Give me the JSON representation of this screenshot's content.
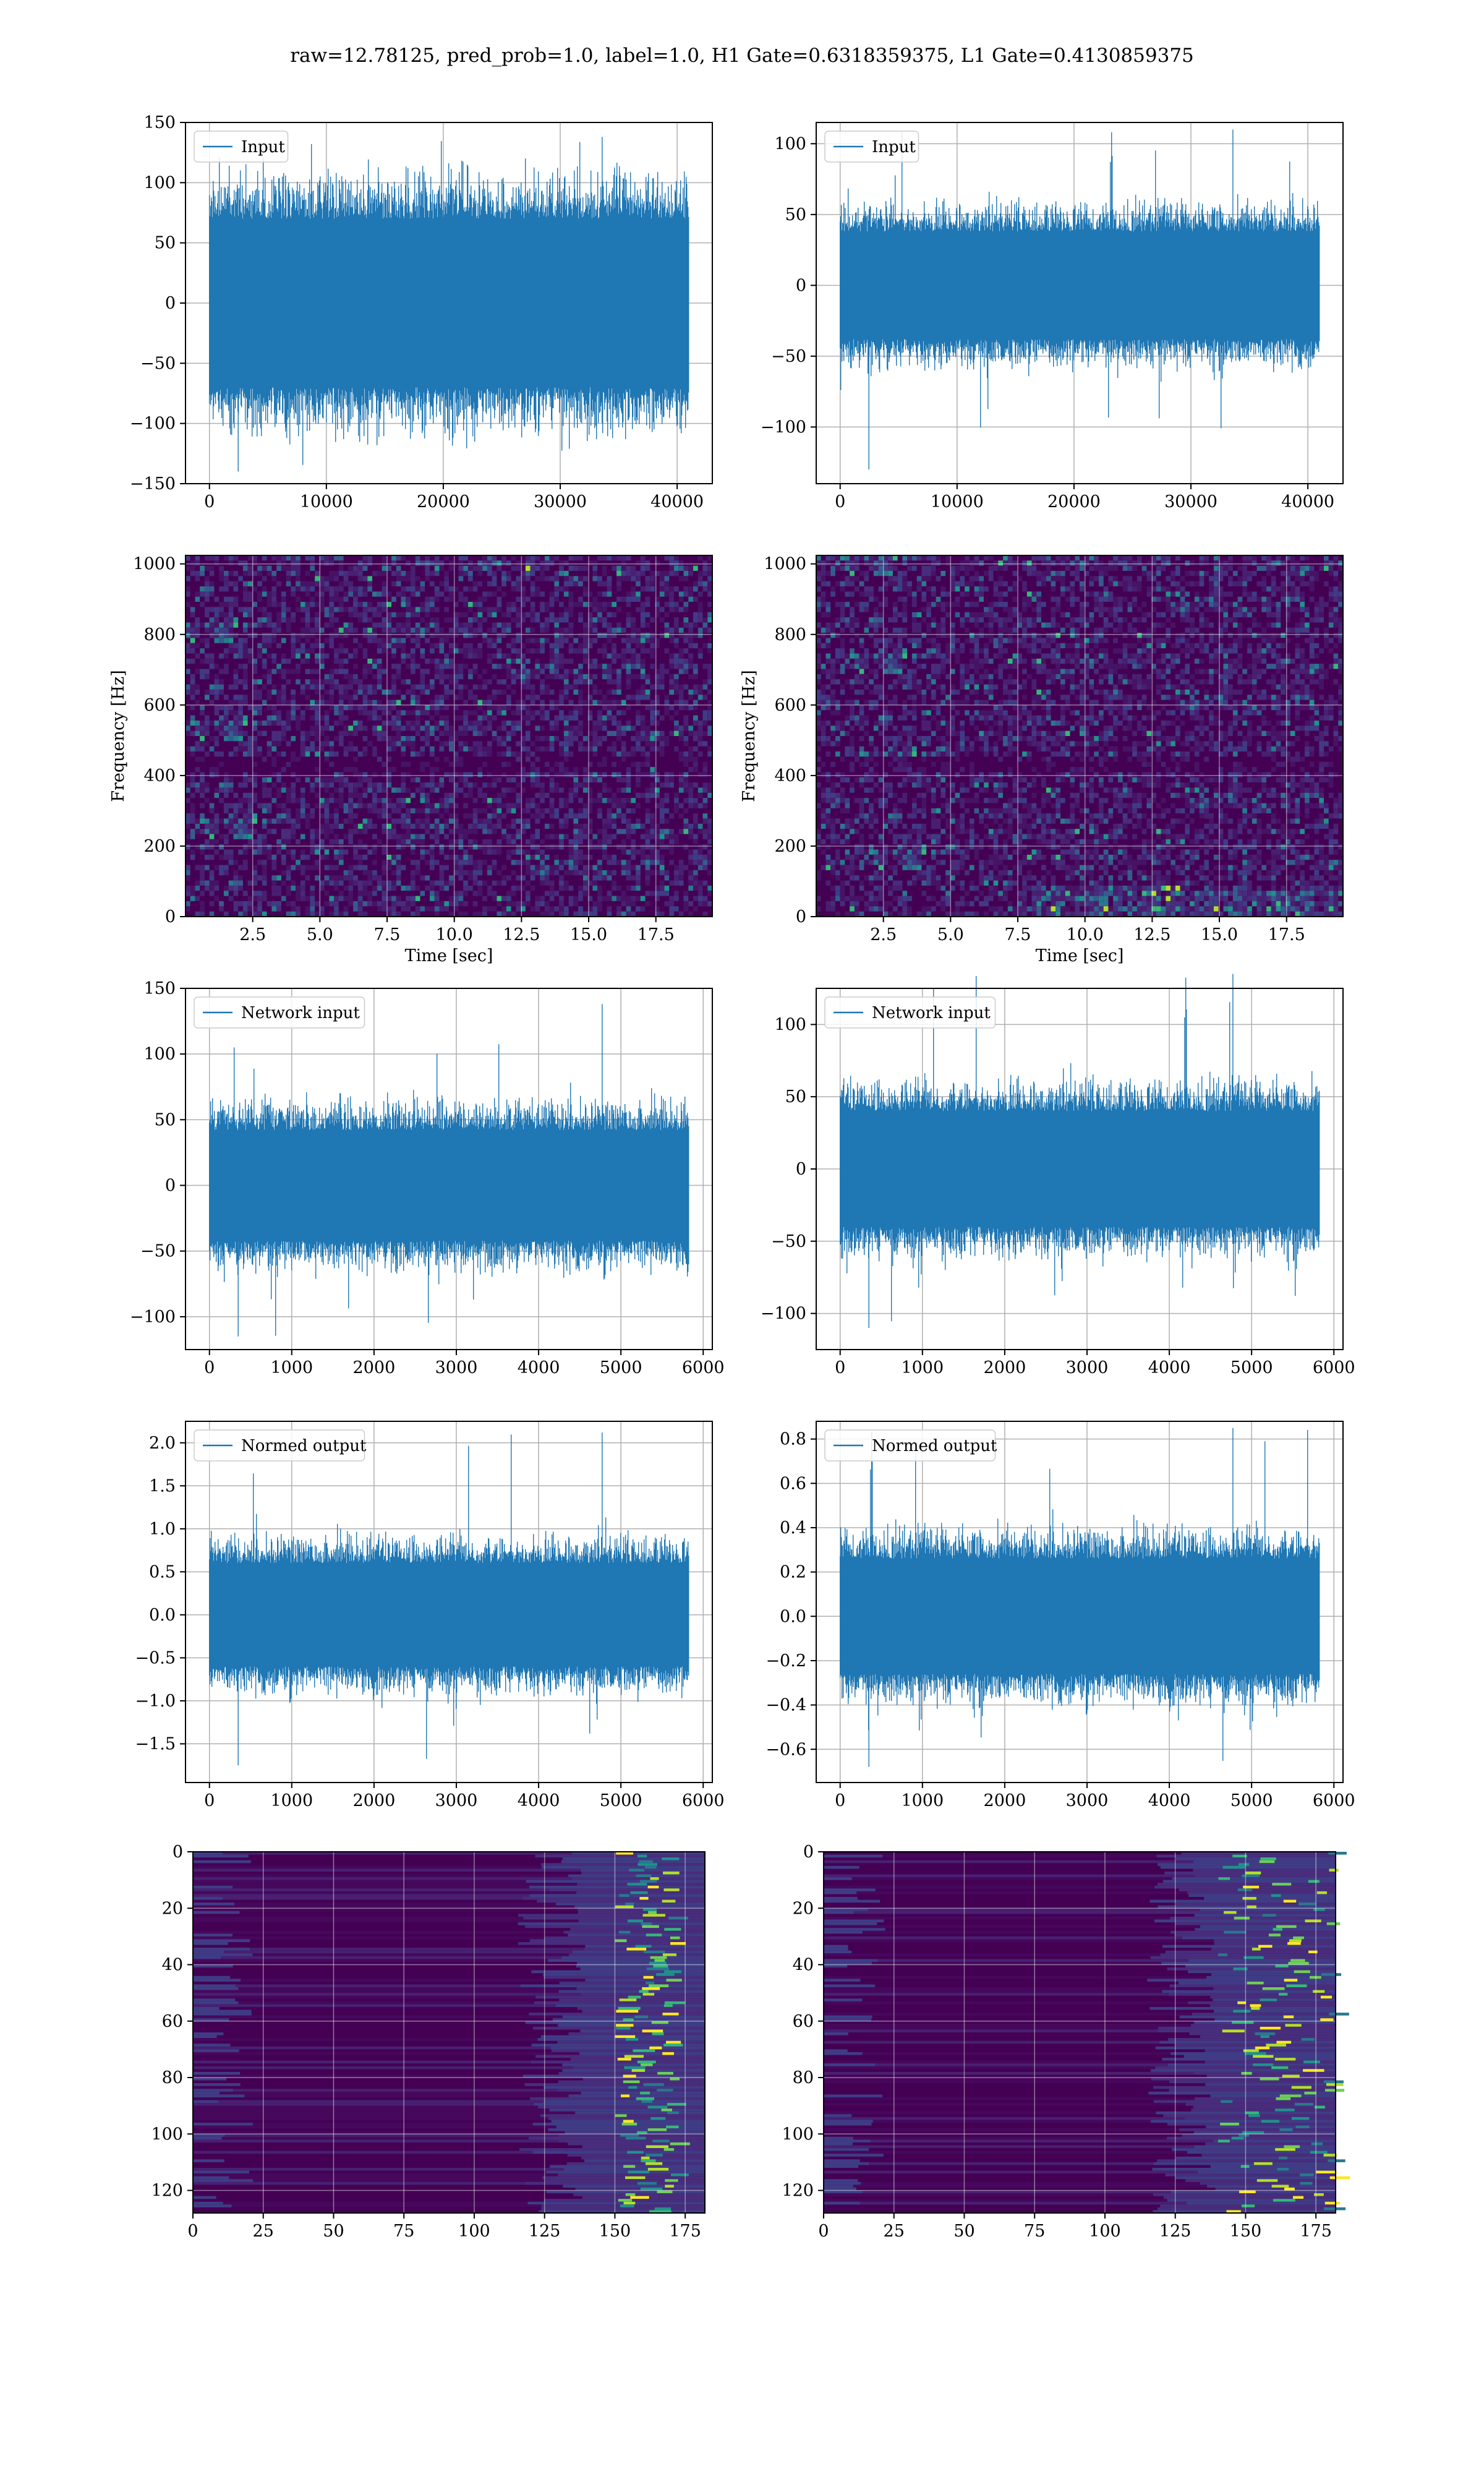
{
  "suptitle": "raw=12.78125, pred_prob=1.0, label=1.0, H1 Gate=0.6318359375, L1 Gate=0.4130859375",
  "colors": {
    "line": "#1f77b4",
    "grid": "#b0b0b0",
    "spec_bg": "#3b1d6b",
    "spec_base": "#440154"
  },
  "chart_data": [
    {
      "id": "input-h1",
      "type": "line",
      "legend": "Input",
      "x_range": [
        0,
        40960
      ],
      "ylim": [
        -150,
        150
      ],
      "xticks": [
        0,
        10000,
        20000,
        30000,
        40000
      ],
      "yticks": [
        -150,
        -100,
        -50,
        0,
        50,
        100,
        150
      ],
      "envelope": {
        "core_amplitude": 70,
        "peak_max": 138,
        "peak_min": -140
      },
      "grid": true,
      "legend_loc": "upper left"
    },
    {
      "id": "input-l1",
      "type": "line",
      "legend": "Input",
      "x_range": [
        0,
        40960
      ],
      "ylim": [
        -140,
        115
      ],
      "xticks": [
        0,
        10000,
        20000,
        30000,
        40000
      ],
      "yticks": [
        -100,
        -50,
        0,
        50,
        100
      ],
      "envelope": {
        "core_amplitude": 38,
        "peak_max": 110,
        "peak_min": -130
      },
      "grid": true,
      "legend_loc": "upper left"
    },
    {
      "id": "spec-h1",
      "type": "heatmap",
      "xlabel": "Time [sec]",
      "ylabel": "Frequency [Hz]",
      "xlim": [
        0,
        19.6
      ],
      "ylim": [
        0,
        1024
      ],
      "xticks": [
        2.5,
        5.0,
        7.5,
        10.0,
        12.5,
        15.0,
        17.5
      ],
      "yticks": [
        0,
        200,
        400,
        600,
        800,
        1000
      ],
      "grid": true
    },
    {
      "id": "spec-l1",
      "type": "heatmap",
      "xlabel": "Time [sec]",
      "ylabel": "Frequency [Hz]",
      "xlim": [
        0,
        19.6
      ],
      "ylim": [
        0,
        1024
      ],
      "xticks": [
        2.5,
        5.0,
        7.5,
        10.0,
        12.5,
        15.0,
        17.5
      ],
      "yticks": [
        0,
        200,
        400,
        600,
        800,
        1000
      ],
      "grid": true
    },
    {
      "id": "netin-h1",
      "type": "line",
      "legend": "Network input",
      "x_range": [
        0,
        5820
      ],
      "ylim": [
        -125,
        150
      ],
      "xticks": [
        0,
        1000,
        2000,
        3000,
        4000,
        5000,
        6000
      ],
      "yticks": [
        -100,
        -50,
        0,
        50,
        100,
        150
      ],
      "envelope": {
        "core_amplitude": 42,
        "peak_max": 138,
        "peak_min": -115
      },
      "grid": true,
      "legend_loc": "upper left"
    },
    {
      "id": "netin-l1",
      "type": "line",
      "legend": "Network input",
      "x_range": [
        0,
        5820
      ],
      "ylim": [
        -125,
        125
      ],
      "xticks": [
        0,
        1000,
        2000,
        3000,
        4000,
        5000,
        6000
      ],
      "yticks": [
        -100,
        -50,
        0,
        50,
        100
      ],
      "envelope": {
        "core_amplitude": 40,
        "peak_max": 135,
        "peak_min": -110
      },
      "grid": true,
      "legend_loc": "upper left"
    },
    {
      "id": "normed-h1",
      "type": "line",
      "legend": "Normed output",
      "x_range": [
        0,
        5820
      ],
      "ylim": [
        -1.95,
        2.25
      ],
      "xticks": [
        0,
        1000,
        2000,
        3000,
        4000,
        5000,
        6000
      ],
      "yticks": [
        -1.5,
        -1.0,
        -0.5,
        0.0,
        0.5,
        1.0,
        1.5,
        2.0
      ],
      "envelope": {
        "core_amplitude": 0.6,
        "peak_max": 2.12,
        "peak_min": -1.75
      },
      "grid": true,
      "legend_loc": "upper left"
    },
    {
      "id": "normed-l1",
      "type": "line",
      "legend": "Normed output",
      "x_range": [
        0,
        5820
      ],
      "ylim": [
        -0.75,
        0.88
      ],
      "xticks": [
        0,
        1000,
        2000,
        3000,
        4000,
        5000,
        6000
      ],
      "yticks": [
        -0.6,
        -0.4,
        -0.2,
        0.0,
        0.2,
        0.4,
        0.6,
        0.8
      ],
      "envelope": {
        "core_amplitude": 0.26,
        "peak_max": 0.85,
        "peak_min": -0.68
      },
      "grid": true,
      "legend_loc": "upper left"
    },
    {
      "id": "feat-h1",
      "type": "heatmap",
      "xlim": [
        0,
        182
      ],
      "ylim": [
        128,
        0
      ],
      "xticks": [
        0,
        25,
        50,
        75,
        100,
        125,
        150,
        175
      ],
      "yticks": [
        0,
        20,
        40,
        60,
        80,
        100,
        120
      ],
      "bright_column_range": [
        150,
        170
      ],
      "grid": true
    },
    {
      "id": "feat-l1",
      "type": "heatmap",
      "xlim": [
        0,
        182
      ],
      "ylim": [
        128,
        0
      ],
      "xticks": [
        0,
        25,
        50,
        75,
        100,
        125,
        150,
        175
      ],
      "yticks": [
        0,
        20,
        40,
        60,
        80,
        100,
        120
      ],
      "bright_column_range": [
        140,
        180
      ],
      "grid": true
    }
  ]
}
